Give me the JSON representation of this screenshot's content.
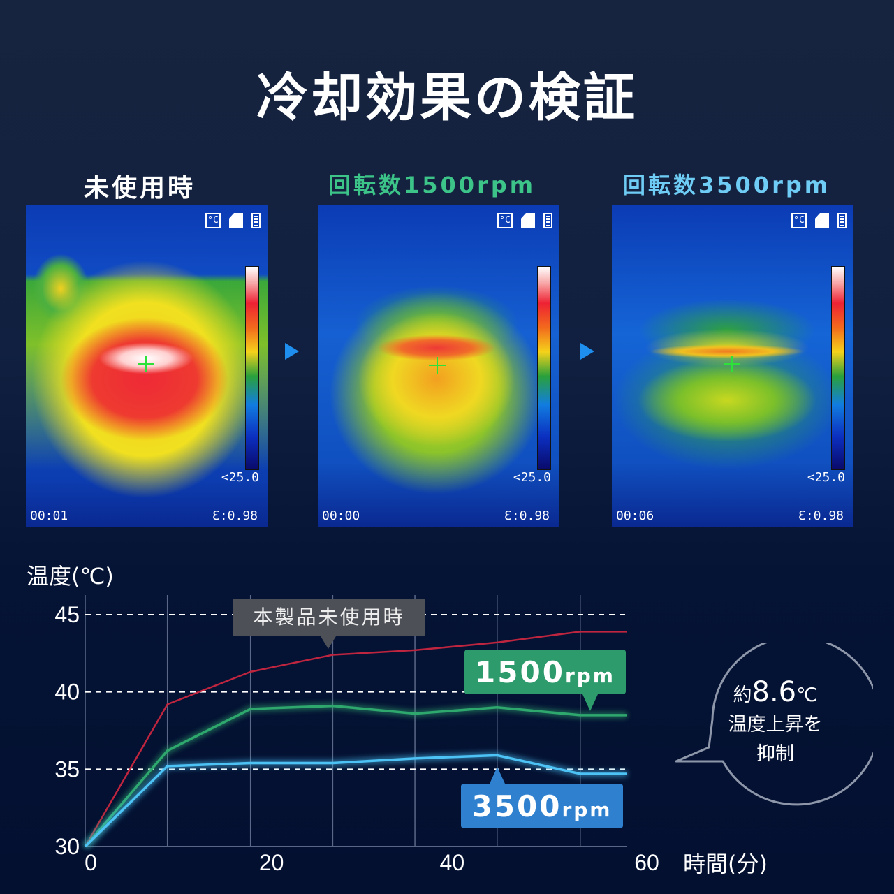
{
  "title": "冷却効果の検証",
  "panels": [
    {
      "label": "未使用時",
      "label_color": "#ffffff",
      "time": "00:01",
      "emissivity": "Ɛ:0.98",
      "scale_min": "<25.0"
    },
    {
      "label": "回転数1500rpm",
      "label_color": "#3cc489",
      "time": "00:00",
      "emissivity": "Ɛ:0.98",
      "scale_min": "<25.0"
    },
    {
      "label": "回転数3500rpm",
      "label_color": "#6fcdf5",
      "time": "00:06",
      "emissivity": "Ɛ:0.98",
      "scale_min": "<25.0"
    }
  ],
  "hud_icons": [
    "celsius-icon",
    "sd-card-icon",
    "battery-icon"
  ],
  "hud_celsius": "°C",
  "chart": {
    "ylabel": "温度(℃)",
    "xlabel": "時間(分)",
    "yticks": [
      "45",
      "40",
      "35",
      "30"
    ],
    "xticks": [
      "0",
      "20",
      "40",
      "60"
    ],
    "tags": {
      "unused": "本製品未使用時",
      "rpm1500_num": "1500",
      "rpm3500_num": "3500",
      "rpm_unit": "rpm"
    },
    "callout": {
      "prefix": "約",
      "value": "8.6",
      "unit": "℃",
      "line2": "温度上昇を",
      "line3": "抑制"
    }
  },
  "chart_data": {
    "type": "line",
    "title": "冷却効果の検証",
    "xlabel": "時間(分)",
    "ylabel": "温度(℃)",
    "xlim": [
      0,
      60
    ],
    "ylim": [
      30,
      45
    ],
    "grid": true,
    "x": [
      0,
      9.1,
      18.3,
      27.4,
      36.5,
      45.6,
      54.8,
      60
    ],
    "series": [
      {
        "name": "本製品未使用時",
        "color": "#c0253f",
        "values": [
          30,
          39.2,
          41.3,
          42.4,
          42.7,
          43.2,
          43.9,
          43.9
        ]
      },
      {
        "name": "1500rpm",
        "color": "#2fa86e",
        "values": [
          30,
          36.2,
          38.9,
          39.1,
          38.6,
          39.0,
          38.5,
          38.5
        ]
      },
      {
        "name": "3500rpm",
        "color": "#4cc2f5",
        "values": [
          30,
          35.2,
          35.4,
          35.4,
          35.7,
          35.9,
          34.7,
          34.7
        ]
      }
    ],
    "annotation": "約8.6℃ 温度上昇を抑制"
  }
}
